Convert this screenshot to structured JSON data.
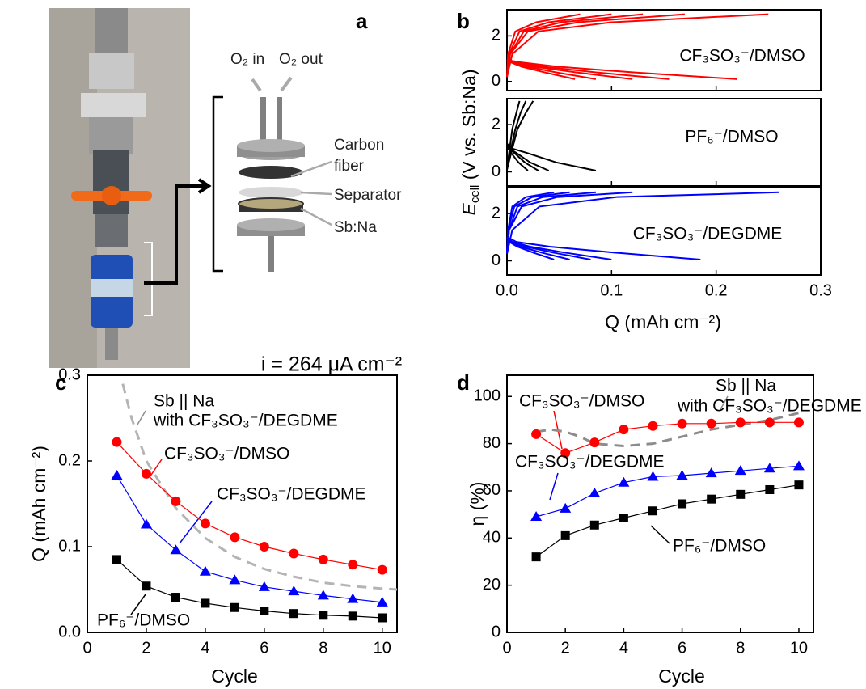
{
  "figure": {
    "panel_label": "a",
    "labels": [
      "O₂ in",
      "O₂ out",
      "Carbon",
      "fiber",
      "Separator",
      "Sb:Na"
    ]
  },
  "chart_data": [
    {
      "type": "line",
      "panel_label": "b",
      "color": "#ff0000",
      "xlim": [
        0,
        0.3
      ],
      "xticks": [
        0,
        0.1,
        0.2,
        0.3
      ],
      "ylim": [
        -0.4,
        3.15
      ],
      "yticks": [
        0,
        2
      ],
      "annotations": [
        {
          "text": "CF₃SO₃⁻/DMSO",
          "color": "#ff0000"
        }
      ],
      "series": [
        {
          "x": [
            0,
            0.011,
            0.048,
            0.121,
            0.22
          ],
          "values": [
            0.95,
            0.85,
            0.65,
            0.4,
            0.1
          ]
        },
        {
          "x": [
            0,
            0.008,
            0.034,
            0.085,
            0.155
          ],
          "values": [
            0.95,
            0.85,
            0.65,
            0.4,
            0.1
          ]
        },
        {
          "x": [
            0,
            0.006,
            0.026,
            0.066,
            0.12
          ],
          "values": [
            0.95,
            0.85,
            0.65,
            0.4,
            0.1
          ]
        },
        {
          "x": [
            0,
            0.004,
            0.019,
            0.047,
            0.085
          ],
          "values": [
            0.95,
            0.85,
            0.65,
            0.4,
            0.1
          ]
        },
        {
          "x": [
            0,
            0.003,
            0.014,
            0.036,
            0.065
          ],
          "values": [
            0.95,
            0.85,
            0.65,
            0.4,
            0.1
          ]
        },
        {
          "x": [
            0,
            0.005,
            0.03,
            0.1,
            0.25
          ],
          "values": [
            0.2,
            1.2,
            2.2,
            2.6,
            2.95
          ]
        },
        {
          "x": [
            0,
            0.003,
            0.02,
            0.068,
            0.17
          ],
          "values": [
            0.2,
            1.2,
            2.2,
            2.6,
            2.95
          ]
        },
        {
          "x": [
            0,
            0.003,
            0.016,
            0.052,
            0.13
          ],
          "values": [
            0.2,
            1.2,
            2.2,
            2.6,
            2.95
          ]
        },
        {
          "x": [
            0,
            0.002,
            0.012,
            0.04,
            0.1
          ],
          "values": [
            0.2,
            1.2,
            2.2,
            2.6,
            2.95
          ]
        },
        {
          "x": [
            0,
            0.001,
            0.008,
            0.028,
            0.07
          ],
          "values": [
            0.2,
            1.2,
            2.2,
            2.6,
            2.95
          ]
        }
      ]
    },
    {
      "type": "line",
      "color": "#000000",
      "xlim": [
        0,
        0.3
      ],
      "xticks": [
        0,
        0.1,
        0.2,
        0.3
      ],
      "ylim": [
        -0.6,
        3.1
      ],
      "yticks": [
        0,
        2
      ],
      "ylabel": {
        "symbol": "E",
        "subscript": "cell",
        "rest": " (V vs. Sb:Na)"
      },
      "annotations": [
        {
          "text": "PF₆⁻/DMSO",
          "color": "#000000"
        }
      ],
      "series": [
        {
          "x": [
            0,
            0.004,
            0.019,
            0.047,
            0.085
          ],
          "values": [
            1.2,
            1.0,
            0.8,
            0.4,
            0.05
          ]
        },
        {
          "x": [
            0,
            0.002,
            0.009,
            0.022,
            0.04
          ],
          "values": [
            1.2,
            1.0,
            0.8,
            0.4,
            0.05
          ]
        },
        {
          "x": [
            0,
            0.002,
            0.007,
            0.017,
            0.03
          ],
          "values": [
            1.2,
            1.0,
            0.8,
            0.4,
            0.05
          ]
        },
        {
          "x": [
            0,
            0.001,
            0.004,
            0.011,
            0.02
          ],
          "values": [
            1.2,
            1.0,
            0.8,
            0.4,
            0.05
          ]
        },
        {
          "x": [
            0,
            0.004,
            0.01,
            0.018,
            0.025
          ],
          "values": [
            0.1,
            0.8,
            1.8,
            2.5,
            3.0
          ]
        },
        {
          "x": [
            0,
            0.003,
            0.008,
            0.013,
            0.018
          ],
          "values": [
            0.1,
            0.8,
            1.8,
            2.5,
            3.0
          ]
        },
        {
          "x": [
            0,
            0.002,
            0.005,
            0.009,
            0.012
          ],
          "values": [
            0.1,
            0.8,
            1.8,
            2.5,
            3.0
          ]
        }
      ]
    },
    {
      "type": "line",
      "color": "#0000ff",
      "xlim": [
        0,
        0.3
      ],
      "xticks": [
        {
          "value": 0,
          "label": "0.0"
        },
        {
          "value": 0.1,
          "label": "0.1"
        },
        {
          "value": 0.2,
          "label": "0.2"
        },
        {
          "value": 0.3,
          "label": "0.3"
        }
      ],
      "ylim": [
        -0.6,
        3.1
      ],
      "yticks": [
        0,
        2
      ],
      "xlabel": "Q (mAh cm⁻²)",
      "annotations": [
        {
          "text": "CF₃SO₃⁻/DEGDME",
          "color": "#0000ff"
        }
      ],
      "series": [
        {
          "x": [
            0,
            0.009,
            0.041,
            0.102,
            0.185
          ],
          "values": [
            1.0,
            0.8,
            0.6,
            0.35,
            0.05
          ]
        },
        {
          "x": [
            0,
            0.005,
            0.022,
            0.055,
            0.1
          ],
          "values": [
            1.0,
            0.8,
            0.6,
            0.35,
            0.05
          ]
        },
        {
          "x": [
            0,
            0.004,
            0.018,
            0.044,
            0.08
          ],
          "values": [
            1.0,
            0.8,
            0.6,
            0.35,
            0.05
          ]
        },
        {
          "x": [
            0,
            0.003,
            0.013,
            0.033,
            0.06
          ],
          "values": [
            1.0,
            0.8,
            0.6,
            0.35,
            0.05
          ]
        },
        {
          "x": [
            0,
            0.002,
            0.01,
            0.025,
            0.045
          ],
          "values": [
            1.0,
            0.8,
            0.6,
            0.35,
            0.05
          ]
        },
        {
          "x": [
            0,
            0.005,
            0.031,
            0.104,
            0.26
          ],
          "values": [
            0.3,
            1.3,
            2.3,
            2.7,
            2.9
          ]
        },
        {
          "x": [
            0,
            0.002,
            0.014,
            0.048,
            0.12
          ],
          "values": [
            0.3,
            1.3,
            2.3,
            2.7,
            2.9
          ]
        },
        {
          "x": [
            0,
            0.002,
            0.01,
            0.034,
            0.085
          ],
          "values": [
            0.3,
            1.3,
            2.3,
            2.7,
            2.9
          ]
        },
        {
          "x": [
            0,
            0.001,
            0.007,
            0.024,
            0.06
          ],
          "values": [
            0.3,
            1.3,
            2.3,
            2.7,
            2.9
          ]
        },
        {
          "x": [
            0,
            0.001,
            0.005,
            0.018,
            0.045
          ],
          "values": [
            0.3,
            1.3,
            2.3,
            2.7,
            2.9
          ]
        }
      ]
    },
    {
      "type": "line",
      "panel_label": "c",
      "title": "i = 264 μA cm⁻²",
      "xlabel": "Cycle",
      "ylabel": "Q (mAh cm⁻²)",
      "xlim": [
        0,
        10.5
      ],
      "xticks": [
        0,
        2,
        4,
        6,
        8,
        10
      ],
      "ylim": [
        0,
        0.3
      ],
      "yticks": [
        {
          "value": 0,
          "label": "0.0"
        },
        {
          "value": 0.1,
          "label": "0.1"
        },
        {
          "value": 0.2,
          "label": "0.2"
        },
        {
          "value": 0.3,
          "label": "0.3"
        }
      ],
      "x": [
        1,
        2,
        3,
        4,
        5,
        6,
        7,
        8,
        9,
        10
      ],
      "annotations": [
        {
          "text": "Sb || Na",
          "color": "#8c8c8c"
        },
        {
          "text": "with CF₃SO₃⁻/DEGDME",
          "color": "#8c8c8c"
        },
        {
          "text": "CF₃SO₃⁻/DMSO",
          "color": "#ff0000"
        },
        {
          "text": "CF₃SO₃⁻/DEGDME",
          "color": "#0000ff"
        },
        {
          "text": "PF₆⁻/DMSO",
          "color": "#000000"
        }
      ],
      "series": [
        {
          "color": "#b4b4b4",
          "dash": true,
          "x": [
            1.2,
            1.5,
            2,
            3,
            4,
            5,
            6,
            7,
            8,
            9,
            10,
            10.5
          ],
          "values": [
            0.29,
            0.25,
            0.2,
            0.145,
            0.11,
            0.088,
            0.074,
            0.065,
            0.058,
            0.054,
            0.051,
            0.05
          ]
        },
        {
          "color": "#ff0000",
          "marker": "circle",
          "values": [
            0.222,
            0.185,
            0.153,
            0.127,
            0.111,
            0.1,
            0.092,
            0.085,
            0.079,
            0.073
          ]
        },
        {
          "color": "#0000ff",
          "marker": "triangle",
          "values": [
            0.183,
            0.126,
            0.096,
            0.071,
            0.061,
            0.053,
            0.048,
            0.043,
            0.039,
            0.035
          ]
        },
        {
          "color": "#000000",
          "marker": "square",
          "values": [
            0.085,
            0.054,
            0.041,
            0.034,
            0.029,
            0.025,
            0.022,
            0.02,
            0.019,
            0.017
          ]
        }
      ]
    },
    {
      "type": "line",
      "panel_label": "d",
      "xlabel": "Cycle",
      "ylabel": "η (%)",
      "xlim": [
        0,
        10.5
      ],
      "xticks": [
        0,
        2,
        4,
        6,
        8,
        10
      ],
      "ylim": [
        0,
        109
      ],
      "yticks": [
        0,
        20,
        40,
        60,
        80,
        100
      ],
      "x": [
        1,
        2,
        3,
        4,
        5,
        6,
        7,
        8,
        9,
        10
      ],
      "annotations": [
        {
          "text": "CF₃SO₃⁻/DMSO",
          "color": "#ff0000"
        },
        {
          "text": "Sb || Na",
          "color": "#8c8c8c"
        },
        {
          "text": "with CF₃SO₃⁻/DEGDME",
          "color": "#8c8c8c"
        },
        {
          "text": "CF₃SO₃⁻/DEGDME",
          "color": "#0000ff"
        },
        {
          "text": "PF₆⁻/DMSO",
          "color": "#000000"
        }
      ],
      "series": [
        {
          "color": "#8c8c8c",
          "dash": true,
          "x": [
            1,
            1.5,
            2,
            2.5,
            3,
            4,
            5,
            6,
            7,
            8,
            9,
            10
          ],
          "values": [
            85,
            86,
            85,
            83,
            80,
            79,
            80,
            83,
            86,
            88,
            90,
            93
          ]
        },
        {
          "color": "#ff0000",
          "marker": "circle",
          "values": [
            84,
            76,
            80.5,
            86,
            87.5,
            88.5,
            88.5,
            89,
            89,
            89
          ]
        },
        {
          "color": "#0000ff",
          "marker": "triangle",
          "values": [
            49,
            52.5,
            59,
            63.5,
            66,
            66.5,
            67.5,
            68.5,
            69.5,
            70.5
          ]
        },
        {
          "color": "#000000",
          "marker": "square",
          "values": [
            32,
            41,
            45.5,
            48.5,
            51.5,
            54.5,
            56.5,
            58.5,
            60.5,
            62.5
          ]
        }
      ]
    }
  ]
}
